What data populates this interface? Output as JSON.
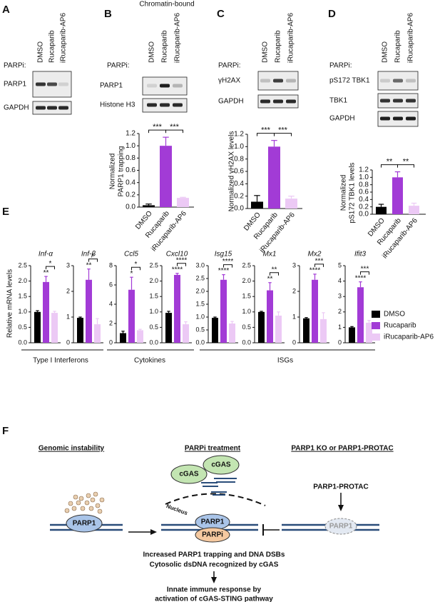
{
  "panels": {
    "A": {
      "label": "A",
      "parpi": "PARPi:",
      "lanes": [
        "DMSO",
        "Rucaparib",
        "iRucaparib-AP6"
      ],
      "rows": [
        "PARP1",
        "GAPDH"
      ]
    },
    "B": {
      "label": "B",
      "header": "Chromatin-bound",
      "parpi": "PARPi:",
      "lanes": [
        "DMSO",
        "Rucaparib",
        "iRucaparib-AP6"
      ],
      "rows": [
        "PARP1",
        "Histone H3"
      ]
    },
    "C": {
      "label": "C",
      "parpi": "PARPi:",
      "lanes": [
        "DMSO",
        "Rucaparib",
        "iRucaparib-AP6"
      ],
      "rows": [
        "γH2AX",
        "GAPDH"
      ]
    },
    "D": {
      "label": "D",
      "parpi": "PARPi:",
      "lanes": [
        "DMSO",
        "Rucaparib",
        "iRucaparib-AP6"
      ],
      "rows": [
        "pS172 TBK1",
        "TBK1",
        "GAPDH"
      ]
    },
    "E": {
      "label": "E",
      "ylabel": "Relative mRNA levels",
      "groups": [
        "Type I Interferons",
        "Cytokines",
        "ISGs"
      ],
      "legend": {
        "names": [
          "DMSO",
          "Rucaparib",
          "iRucaparib-AP6"
        ],
        "colors": [
          "#000000",
          "#a23bd6",
          "#ecc9f5"
        ]
      }
    },
    "F": {
      "label": "F",
      "titles": [
        "Genomic instability",
        "PARPi treatment",
        "PARP1 KO or PARP1-PROTAC"
      ],
      "cgas": [
        "cGAS",
        "cGAS"
      ],
      "nucleus": "Nucleus",
      "parp1": [
        "PARP1",
        "PARP1",
        "PARP1"
      ],
      "parpi": "PARPi",
      "protac": "PARP1-PROTAC",
      "outcome": [
        "Increased PARP1 trapping and DNA DSBs",
        "Cytosolic dsDNA recognized by cGAS"
      ],
      "response": [
        "Innate immune response by",
        "activation of cGAS-STING pathway"
      ]
    }
  },
  "chart_data": [
    {
      "type": "bar",
      "ylabel": [
        "Normalized",
        "PARP1 trapping"
      ],
      "categories": [
        "DMSO",
        "Rucaparib",
        "iRucaparib-AP6"
      ],
      "values": [
        0.03,
        1.0,
        0.15
      ],
      "errors": [
        0.02,
        0.14,
        0.01
      ],
      "colors": [
        "#000000",
        "#a23bd6",
        "#ecc9f5"
      ],
      "ylim": [
        0,
        1.2
      ],
      "yticks": [
        {
          "value": 0,
          "label": "0.0"
        },
        {
          "value": 0.2,
          "label": "0.2"
        },
        {
          "value": 0.4,
          "label": "0.4"
        },
        {
          "value": 0.6,
          "label": "0.6"
        },
        {
          "value": 0.8,
          "label": "0.8"
        },
        {
          "value": 1.0,
          "label": "1.0"
        },
        {
          "value": 1.2,
          "label": "1.2"
        }
      ],
      "annotations": [
        "***",
        "***"
      ]
    },
    {
      "type": "bar",
      "ylabel": [
        "Normalized γH2AX levels"
      ],
      "categories": [
        "DMSO",
        "Rucaparib",
        "iRucaparib-AP6"
      ],
      "values": [
        0.11,
        1.0,
        0.16
      ],
      "errors": [
        0.1,
        0.1,
        0.04
      ],
      "colors": [
        "#000000",
        "#a23bd6",
        "#ecc9f5"
      ],
      "ylim": [
        0,
        1.2
      ],
      "yticks": [
        {
          "value": 0,
          "label": "0.0"
        },
        {
          "value": 0.2,
          "label": "0.2"
        },
        {
          "value": 0.4,
          "label": "0.4"
        },
        {
          "value": 0.6,
          "label": "0.6"
        },
        {
          "value": 0.8,
          "label": "0.8"
        },
        {
          "value": 1.0,
          "label": "1.0"
        },
        {
          "value": 1.2,
          "label": "1.2"
        }
      ],
      "annotations": [
        "***",
        "***"
      ]
    },
    {
      "type": "bar",
      "ylabel": [
        "Normalized",
        "pS172 TBK1 levels"
      ],
      "categories": [
        "DMSO",
        "Rucaparib",
        "iRucaparib-AP6"
      ],
      "values": [
        0.2,
        1.0,
        0.23
      ],
      "errors": [
        0.07,
        0.15,
        0.07
      ],
      "colors": [
        "#000000",
        "#a23bd6",
        "#ecc9f5"
      ],
      "ylim": [
        0,
        1.2
      ],
      "yticks": [
        {
          "value": 0,
          "label": "0.0"
        },
        {
          "value": 0.2,
          "label": "0.2"
        },
        {
          "value": 0.4,
          "label": "0.4"
        },
        {
          "value": 0.6,
          "label": "0.6"
        },
        {
          "value": 0.8,
          "label": "0.8"
        },
        {
          "value": 1.0,
          "label": "1.0"
        },
        {
          "value": 1.2,
          "label": "1.2"
        }
      ],
      "annotations": [
        "**",
        "**"
      ]
    },
    {
      "type": "bar",
      "title": "Inf-α",
      "values": [
        1.0,
        1.97,
        0.97
      ],
      "errors": [
        0.04,
        0.18,
        0.05
      ],
      "colors": [
        "#000000",
        "#a23bd6",
        "#ecc9f5"
      ],
      "ylim": [
        0,
        2.5
      ],
      "yticks": [
        {
          "value": 0,
          "label": "0.0"
        },
        {
          "value": 0.5,
          "label": "0.5"
        },
        {
          "value": 1.0,
          "label": "1.0"
        },
        {
          "value": 1.5,
          "label": "1.5"
        },
        {
          "value": 2.0,
          "label": "2.0"
        },
        {
          "value": 2.5,
          "label": "2.5"
        }
      ],
      "annotations": [
        "**",
        "*"
      ]
    },
    {
      "type": "bar",
      "title": "Inf-β",
      "values": [
        0.97,
        2.45,
        0.72
      ],
      "errors": [
        0.03,
        0.42,
        0.22
      ],
      "colors": [
        "#000000",
        "#a23bd6",
        "#ecc9f5"
      ],
      "ylim": [
        0,
        3
      ],
      "yticks": [
        0,
        1,
        2,
        3
      ],
      "annotations": [
        "**",
        "*"
      ]
    },
    {
      "type": "bar",
      "title": "Ccl5",
      "values": [
        1.0,
        5.5,
        1.3
      ],
      "errors": [
        0.2,
        1.3,
        0.1
      ],
      "colors": [
        "#000000",
        "#a23bd6",
        "#ecc9f5"
      ],
      "ylim": [
        0,
        8
      ],
      "yticks": [
        0,
        2,
        4,
        6,
        8
      ],
      "annotations": [
        "*",
        "*"
      ]
    },
    {
      "type": "bar",
      "title": "Cxcl10",
      "values": [
        0.97,
        2.2,
        0.6
      ],
      "errors": [
        0.05,
        0.05,
        0.08
      ],
      "colors": [
        "#000000",
        "#a23bd6",
        "#ecc9f5"
      ],
      "ylim": [
        0,
        2.5
      ],
      "yticks": [
        {
          "value": 0,
          "label": "0.0"
        },
        {
          "value": 0.5,
          "label": "0.5"
        },
        {
          "value": 1.0,
          "label": "1.0"
        },
        {
          "value": 1.5,
          "label": "1.5"
        },
        {
          "value": 2.0,
          "label": "2.0"
        },
        {
          "value": 2.5,
          "label": "2.5"
        }
      ],
      "annotations": [
        "****",
        "****"
      ]
    },
    {
      "type": "bar",
      "title": "Isg15",
      "values": [
        0.97,
        2.45,
        0.75
      ],
      "errors": [
        0.03,
        0.2,
        0.08
      ],
      "colors": [
        "#000000",
        "#a23bd6",
        "#ecc9f5"
      ],
      "ylim": [
        0,
        3
      ],
      "yticks": [
        {
          "value": 0,
          "label": "0.0"
        },
        {
          "value": 0.5,
          "label": "0.5"
        },
        {
          "value": 1.0,
          "label": "1.0"
        },
        {
          "value": 1.5,
          "label": "1.5"
        },
        {
          "value": 2.0,
          "label": "2.0"
        },
        {
          "value": 2.5,
          "label": "2.5"
        },
        {
          "value": 3.0,
          "label": "3.0"
        }
      ],
      "annotations": [
        "****",
        "****"
      ]
    },
    {
      "type": "bar",
      "title": "Mx1",
      "values": [
        1.0,
        1.7,
        0.88
      ],
      "errors": [
        0.02,
        0.25,
        0.12
      ],
      "colors": [
        "#000000",
        "#a23bd6",
        "#ecc9f5"
      ],
      "ylim": [
        0,
        2.5
      ],
      "yticks": [
        {
          "value": 0,
          "label": "0.0"
        },
        {
          "value": 0.5,
          "label": "0.5"
        },
        {
          "value": 1.0,
          "label": "1.0"
        },
        {
          "value": 1.5,
          "label": "1.5"
        },
        {
          "value": 2.0,
          "label": "2.0"
        },
        {
          "value": 2.5,
          "label": "2.5"
        }
      ],
      "annotations": [
        "**",
        "**"
      ]
    },
    {
      "type": "bar",
      "title": "Mx2",
      "values": [
        0.95,
        2.45,
        0.92
      ],
      "errors": [
        0.03,
        0.22,
        0.25
      ],
      "colors": [
        "#000000",
        "#a23bd6",
        "#ecc9f5"
      ],
      "ylim": [
        0,
        3
      ],
      "yticks": [
        0,
        1,
        2,
        3
      ],
      "annotations": [
        "****",
        "***"
      ]
    },
    {
      "type": "bar",
      "title": "Ifit3",
      "values": [
        1.0,
        3.6,
        1.3
      ],
      "errors": [
        0.05,
        0.35,
        0.15
      ],
      "colors": [
        "#000000",
        "#a23bd6",
        "#ecc9f5"
      ],
      "ylim": [
        0,
        5
      ],
      "yticks": [
        0,
        1,
        2,
        3,
        4,
        5
      ],
      "annotations": [
        "****",
        "***"
      ]
    }
  ]
}
